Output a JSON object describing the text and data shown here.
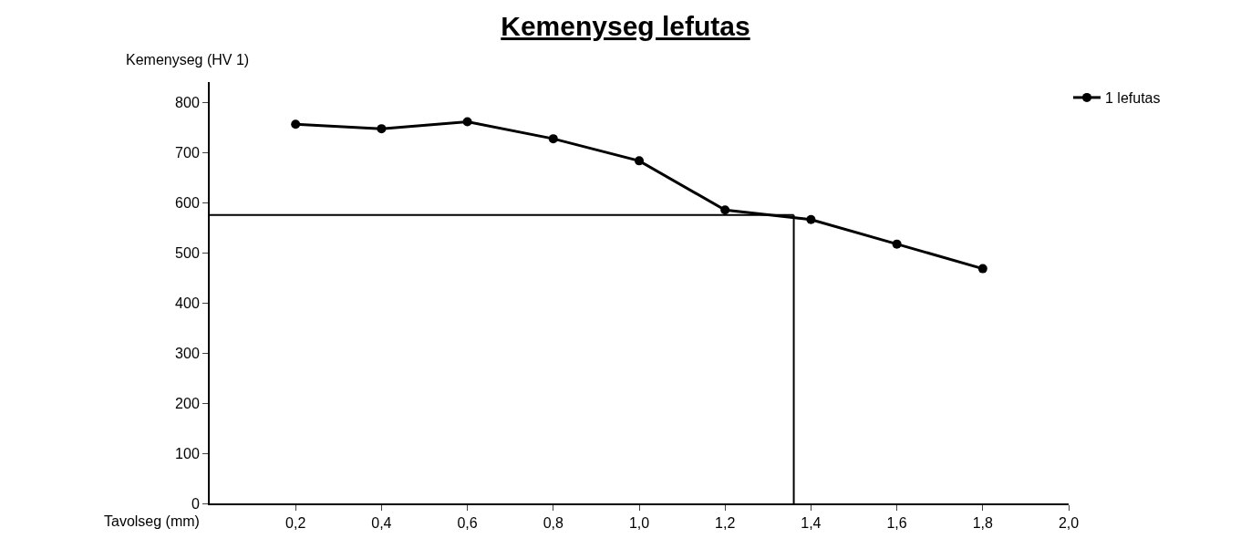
{
  "chart_data": {
    "type": "line",
    "title": "Kemenyseg lefutas",
    "xlabel": "Tavolseg (mm)",
    "ylabel": "Kemenyseg (HV 1)",
    "x": [
      0.2,
      0.4,
      0.6,
      0.8,
      1.0,
      1.2,
      1.4,
      1.6,
      1.8
    ],
    "series": [
      {
        "name": "1 lefutas",
        "color": "#000000",
        "values": [
          756,
          747,
          761,
          727,
          683,
          585,
          566,
          517,
          468
        ]
      }
    ],
    "xlim": [
      0,
      2.0
    ],
    "ylim": [
      0,
      840
    ],
    "xticks": [
      {
        "value": 0.2,
        "label": "0,2"
      },
      {
        "value": 0.4,
        "label": "0,4"
      },
      {
        "value": 0.6,
        "label": "0,6"
      },
      {
        "value": 0.8,
        "label": "0,8"
      },
      {
        "value": 1.0,
        "label": "1,0"
      },
      {
        "value": 1.2,
        "label": "1,2"
      },
      {
        "value": 1.4,
        "label": "1,4"
      },
      {
        "value": 1.6,
        "label": "1,6"
      },
      {
        "value": 1.8,
        "label": "1,8"
      },
      {
        "value": 2.0,
        "label": "2,0"
      }
    ],
    "yticks": [
      0,
      100,
      200,
      300,
      400,
      500,
      600,
      700,
      800
    ],
    "ref_lines": [
      {
        "axis": "y",
        "value": 575,
        "color": "#000000"
      },
      {
        "axis": "x",
        "value": 1.36,
        "color": "#000000"
      }
    ],
    "grid": false,
    "legend": "top right",
    "marker": "circle",
    "line_style": "solid"
  }
}
